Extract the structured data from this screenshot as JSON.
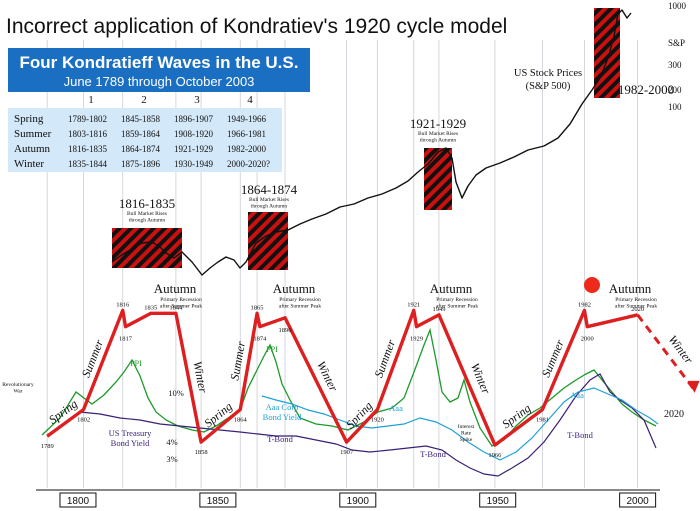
{
  "header": {
    "title": "Incorrect application of Kondratiev's 1920 cycle model"
  },
  "banner": {
    "title": "Four Kondratieff Waves in the U.S.",
    "subtitle": "June 1789 through October 2003"
  },
  "season_table": {
    "headers": [
      "1",
      "2",
      "3",
      "4"
    ],
    "rows": [
      {
        "season": "Spring",
        "values": [
          "1789-1802",
          "1845-1858",
          "1896-1907",
          "1949-1966"
        ]
      },
      {
        "season": "Summer",
        "values": [
          "1803-1816",
          "1859-1864",
          "1908-1920",
          "1966-1981"
        ]
      },
      {
        "season": "Autumn",
        "values": [
          "1816-1835",
          "1864-1874",
          "1921-1929",
          "1982-2000"
        ]
      },
      {
        "season": "Winter",
        "values": [
          "1835-1844",
          "1875-1896",
          "1930-1949",
          "2000-2020?"
        ]
      }
    ]
  },
  "colors": {
    "banner_bg": "#1a6fc2",
    "table_bg": "#d3e8f8",
    "wave_line": "#dd1f1f",
    "stock_line": "#111111",
    "ppi_line": "#1d9a2a",
    "aaa_line": "#1fa0d8",
    "tbond_line": "#3a1f78",
    "hatch_red": "#cc1010",
    "autumn_dot": "#ee2b1b"
  },
  "chart_data": {
    "type": "line",
    "x_ticks": [
      "1800",
      "1850",
      "1900",
      "1950",
      "2000"
    ],
    "x_range": [
      1785,
      2008
    ],
    "stock_axis": {
      "ticks": [
        "1000",
        "S&P",
        "300",
        "200",
        "100"
      ]
    },
    "stock_label": [
      "US Stock Prices",
      "(S&P 500)"
    ],
    "bull_markets": [
      {
        "title": "1816-1835",
        "note": [
          "Bull Market Rises",
          "through Autumn"
        ]
      },
      {
        "title": "1864-1874",
        "note": [
          "Bull Market Rises",
          "through Autumn"
        ]
      },
      {
        "title": "1921-1929",
        "note": [
          "Bull Market Rises",
          "through Autumn"
        ]
      },
      {
        "title": "1982-2000",
        "note": []
      }
    ],
    "autumn_notes": [
      {
        "title": "Autumn",
        "note": [
          "Primary Recession",
          "after Summer Peak"
        ]
      },
      {
        "title": "Autumn",
        "note": [
          "Primary Recession",
          "after Summer Peak"
        ]
      },
      {
        "title": "Autumn",
        "note": [
          "Primary Recession",
          "after Summer Peak"
        ]
      },
      {
        "title": "Autumn",
        "note": [
          "Primary Recession",
          "after Summer Peak"
        ]
      }
    ],
    "season_labels": [
      "Spring",
      "Summer",
      "Winter",
      "Spring",
      "Summer",
      "Winter",
      "Spring",
      "Summer",
      "Winter",
      "Spring",
      "Summer",
      "Winter"
    ],
    "wave_points": [
      [
        1789,
        0.1
      ],
      [
        1802,
        0.28
      ],
      [
        1816,
        0.95
      ],
      [
        1817,
        0.84
      ],
      [
        1826,
        0.93
      ],
      [
        1835,
        0.93
      ],
      [
        1844,
        0.06
      ],
      [
        1858,
        0.28
      ],
      [
        1864,
        0.93
      ],
      [
        1865,
        0.84
      ],
      [
        1874,
        0.9
      ],
      [
        1896,
        0.06
      ],
      [
        1907,
        0.28
      ],
      [
        1920,
        0.95
      ],
      [
        1921,
        0.84
      ],
      [
        1929,
        0.92
      ],
      [
        1949,
        0.04
      ],
      [
        1966,
        0.28
      ],
      [
        1981,
        0.95
      ],
      [
        1982,
        0.84
      ],
      [
        2000,
        0.92
      ]
    ],
    "wave_forecast": [
      [
        2000,
        0.92
      ],
      [
        2020,
        0.42
      ]
    ],
    "year_labels": [
      "1789",
      "1802",
      "1816",
      "1817",
      "1835",
      "1844",
      "1858",
      "1864",
      "1865",
      "1874",
      "1896",
      "1907",
      "1920",
      "1921",
      "1929",
      "1949",
      "1966",
      "1981",
      "1982",
      "2000",
      "2020"
    ],
    "series_labels": {
      "ppi": "PPI",
      "treasury": [
        "US Treasury",
        "Bond Yield"
      ],
      "tbond": "T-Bond",
      "aaa": "Aaa",
      "aaa_corp": [
        "Aaa Corp",
        "Bond Yield"
      ],
      "interest": [
        "Interest",
        "Rate",
        "Spike"
      ],
      "yields": [
        "10%",
        "4%",
        "3%"
      ],
      "revolutionary": [
        "Revolutionary",
        "War"
      ]
    }
  }
}
